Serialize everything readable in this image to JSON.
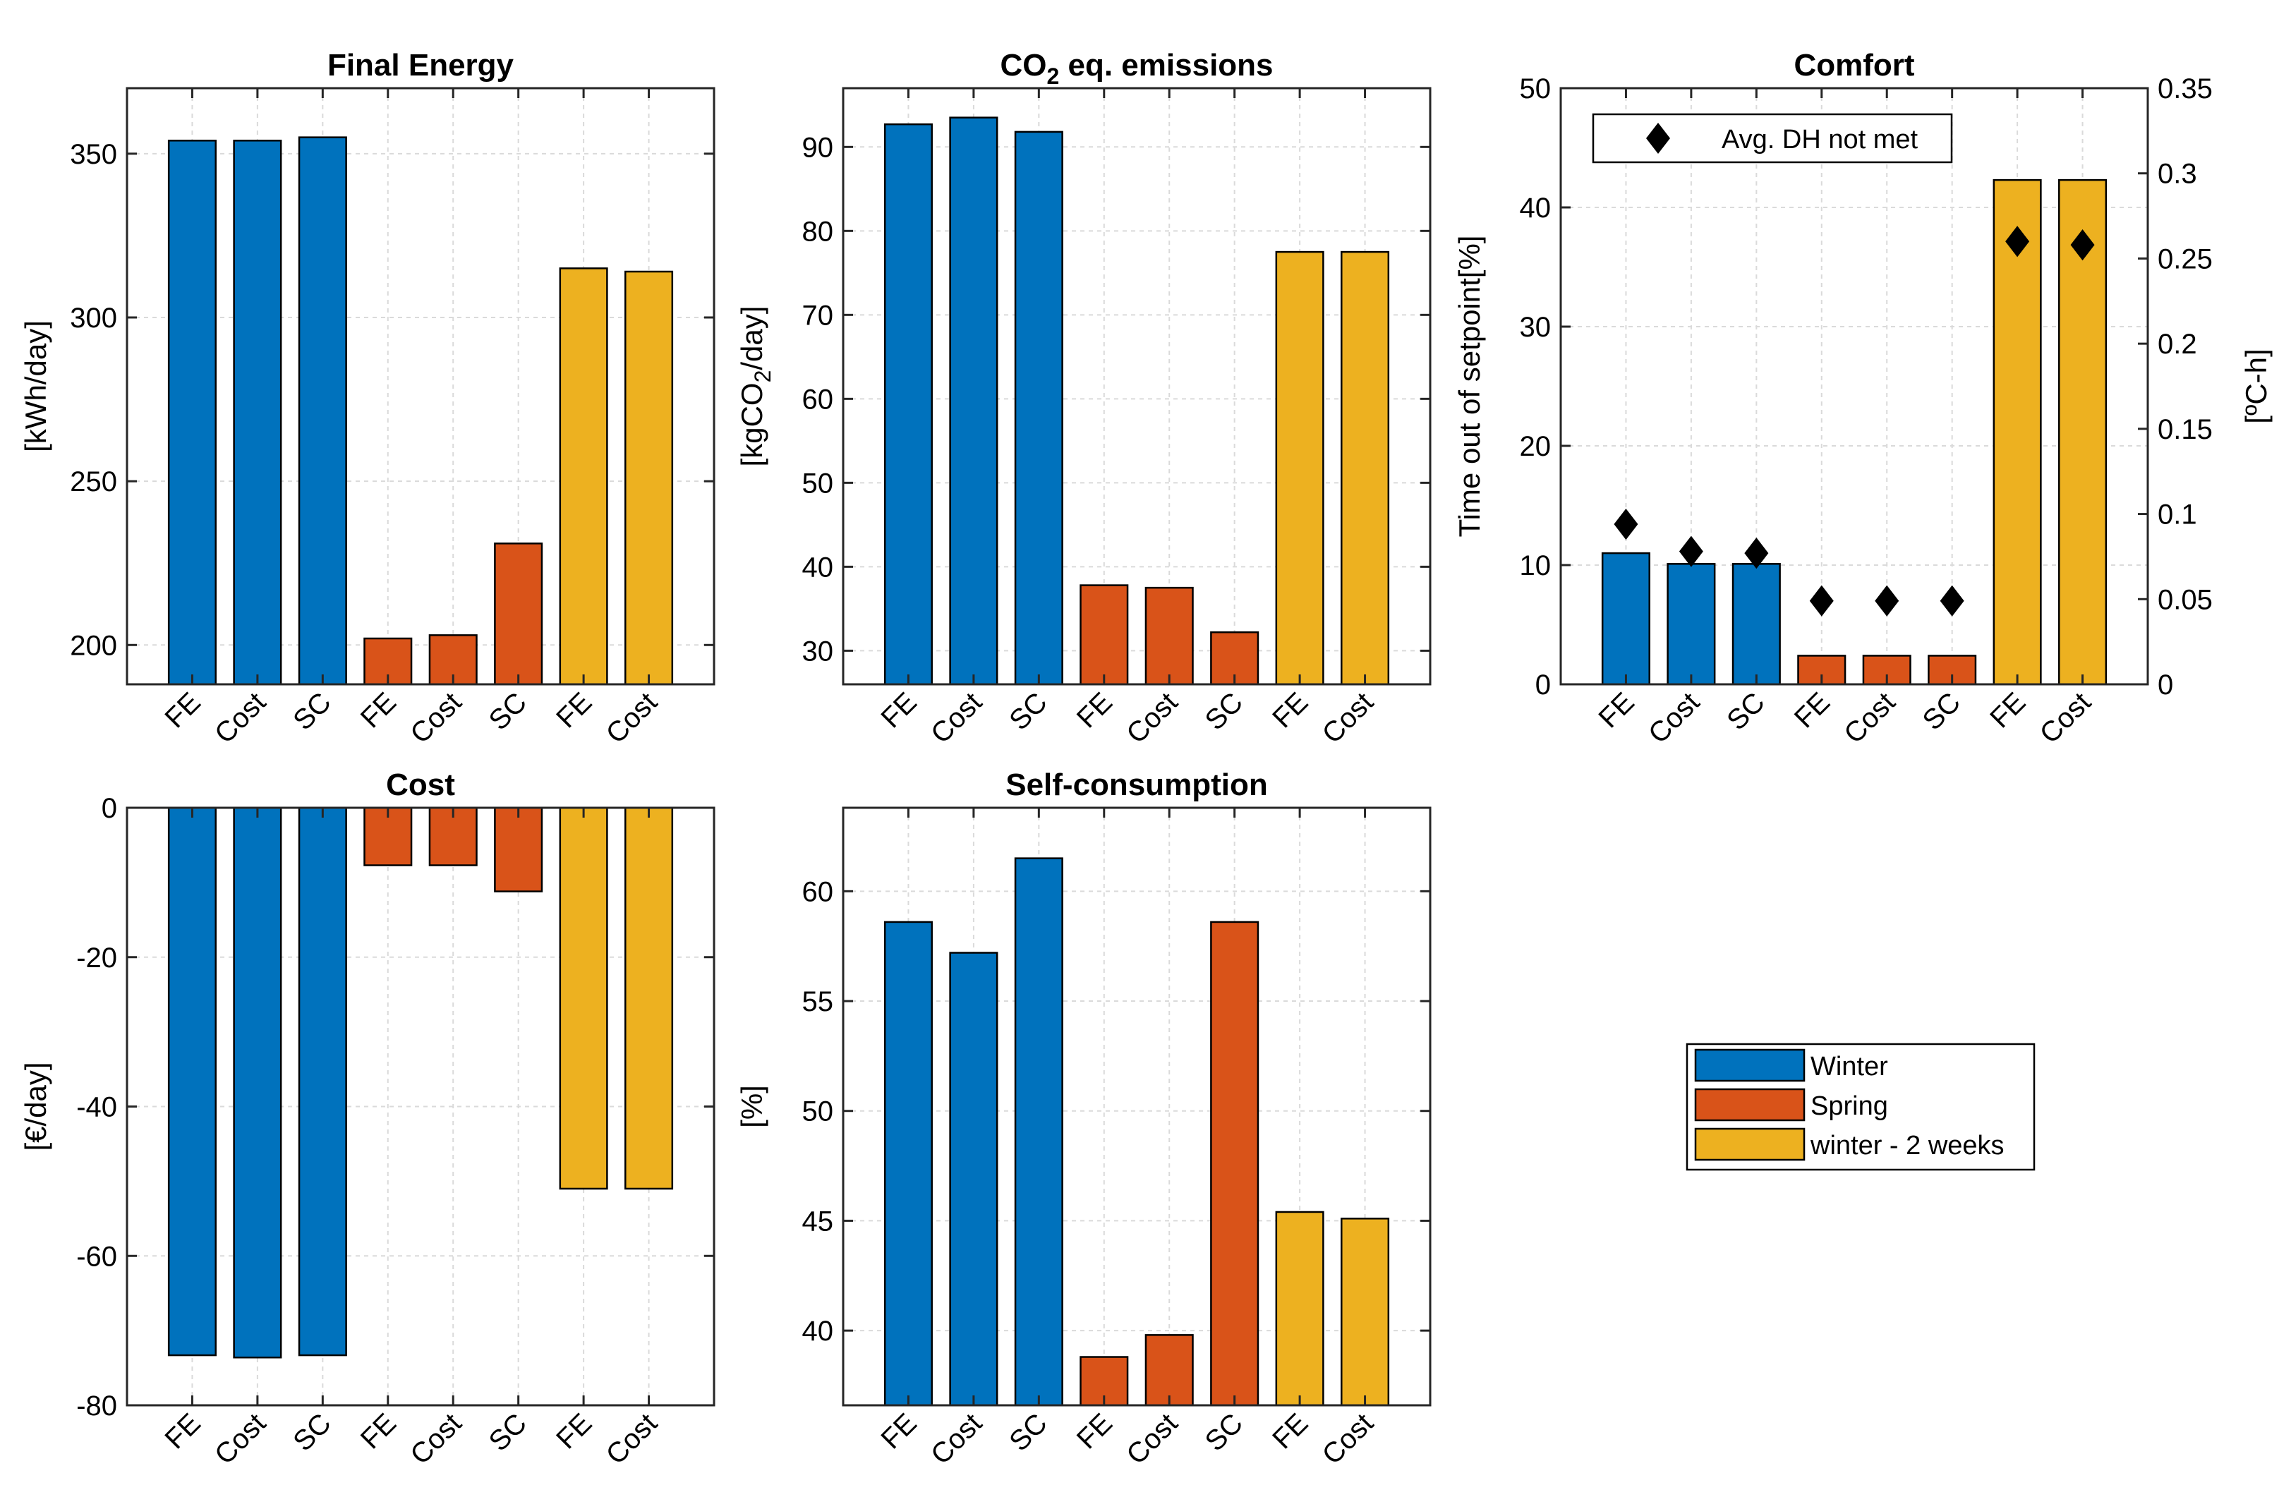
{
  "colors": {
    "winter": "#0072BD",
    "spring": "#D95319",
    "winter2w": "#EDB120",
    "grid": "#DADADA",
    "axis": "#262626"
  },
  "legend": {
    "items": [
      {
        "label": "Winter",
        "color_key": "winter"
      },
      {
        "label": "Spring",
        "color_key": "spring"
      },
      {
        "label": "winter - 2 weeks",
        "color_key": "winter2w"
      }
    ]
  },
  "chart_data": [
    {
      "id": "final-energy",
      "type": "bar",
      "title": "Final Energy",
      "ylabel": "[kWh/day]",
      "categories": [
        "FE",
        "Cost",
        "SC",
        "FE",
        "Cost",
        "SC",
        "FE",
        "Cost"
      ],
      "groups": [
        "winter",
        "winter",
        "winter",
        "spring",
        "spring",
        "spring",
        "winter2w",
        "winter2w"
      ],
      "values": [
        354,
        354,
        355,
        202,
        203,
        231,
        315,
        314
      ],
      "ylim": [
        188,
        370
      ],
      "yticks": [
        200,
        250,
        300,
        350
      ],
      "ytick_labels": [
        "200",
        "250",
        "300",
        "350"
      ]
    },
    {
      "id": "co2-emissions",
      "type": "bar",
      "title": "CO",
      "title_sub": "2",
      "title_rest": " eq. emissions",
      "ylabel": "[kgCO",
      "ylabel_sub": "2",
      "ylabel_rest": "/day]",
      "categories": [
        "FE",
        "Cost",
        "SC",
        "FE",
        "Cost",
        "SC",
        "FE",
        "Cost"
      ],
      "groups": [
        "winter",
        "winter",
        "winter",
        "spring",
        "spring",
        "spring",
        "winter2w",
        "winter2w"
      ],
      "values": [
        92.7,
        93.5,
        91.8,
        37.8,
        37.5,
        32.2,
        77.5,
        77.5
      ],
      "ylim": [
        26,
        97
      ],
      "yticks": [
        30,
        40,
        50,
        60,
        70,
        80,
        90
      ],
      "ytick_labels": [
        "30",
        "40",
        "50",
        "60",
        "70",
        "80",
        "90"
      ]
    },
    {
      "id": "comfort",
      "type": "bar",
      "title": "Comfort",
      "ylabel": "Time out of setpoint[%]",
      "ylabel_right": "[ºC-h]",
      "categories": [
        "FE",
        "Cost",
        "SC",
        "FE",
        "Cost",
        "SC",
        "FE",
        "Cost"
      ],
      "groups": [
        "winter",
        "winter",
        "winter",
        "spring",
        "spring",
        "spring",
        "winter2w",
        "winter2w"
      ],
      "values": [
        11,
        10.1,
        10.1,
        2.4,
        2.4,
        2.4,
        42.3,
        42.3
      ],
      "ylim": [
        0,
        50
      ],
      "yticks": [
        0,
        10,
        20,
        30,
        40,
        50
      ],
      "ytick_labels": [
        "0",
        "10",
        "20",
        "30",
        "40",
        "50"
      ],
      "right_axis": {
        "ylim": [
          0,
          0.35
        ],
        "ticks": [
          0,
          0.05,
          0.1,
          0.15,
          0.2,
          0.25,
          0.3,
          0.35
        ],
        "tick_labels": [
          "0",
          "0.05",
          "0.1",
          "0.15",
          "0.2",
          "0.25",
          "0.3",
          "0.35"
        ]
      },
      "markers": {
        "label": "Avg. DH not met",
        "values": [
          0.094,
          0.078,
          0.077,
          0.049,
          0.049,
          0.049,
          0.26,
          0.258
        ]
      }
    },
    {
      "id": "cost",
      "type": "bar",
      "title": "Cost",
      "ylabel": "[€/day]",
      "categories": [
        "FE",
        "Cost",
        "SC",
        "FE",
        "Cost",
        "SC",
        "FE",
        "Cost"
      ],
      "groups": [
        "winter",
        "winter",
        "winter",
        "spring",
        "spring",
        "spring",
        "winter2w",
        "winter2w"
      ],
      "values": [
        -73.3,
        -73.6,
        -73.3,
        -7.7,
        -7.7,
        -11.2,
        -51,
        -51
      ],
      "ylim": [
        -80,
        0
      ],
      "yticks": [
        -80,
        -60,
        -40,
        -20,
        0
      ],
      "ytick_labels": [
        "-80",
        "-60",
        "-40",
        "-20",
        "0"
      ]
    },
    {
      "id": "self-consumption",
      "type": "bar",
      "title": "Self-consumption",
      "ylabel": "[%]",
      "categories": [
        "FE",
        "Cost",
        "SC",
        "FE",
        "Cost",
        "SC",
        "FE",
        "Cost"
      ],
      "groups": [
        "winter",
        "winter",
        "winter",
        "spring",
        "spring",
        "spring",
        "winter2w",
        "winter2w"
      ],
      "values": [
        58.6,
        57.2,
        61.5,
        38.8,
        39.8,
        58.6,
        45.4,
        45.1
      ],
      "ylim": [
        36.6,
        63.8
      ],
      "yticks": [
        40,
        45,
        50,
        55,
        60
      ],
      "ytick_labels": [
        "40",
        "45",
        "50",
        "55",
        "60"
      ]
    }
  ]
}
